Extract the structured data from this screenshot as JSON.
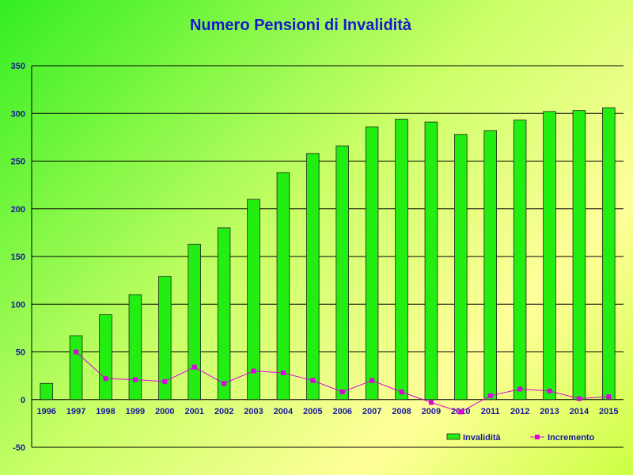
{
  "chart_data": {
    "type": "bar",
    "title": "Numero Pensioni di Invalidità",
    "categories": [
      "1996",
      "1997",
      "1998",
      "1999",
      "2000",
      "2001",
      "2002",
      "2003",
      "2004",
      "2005",
      "2006",
      "2007",
      "2008",
      "2009",
      "2010",
      "2011",
      "2012",
      "2013",
      "2014",
      "2015"
    ],
    "series": [
      {
        "name": "Invalidità",
        "type": "bar",
        "color": "#22ee11",
        "values": [
          17,
          67,
          89,
          110,
          129,
          163,
          180,
          210,
          238,
          258,
          266,
          286,
          294,
          291,
          278,
          282,
          293,
          302,
          303,
          306
        ]
      },
      {
        "name": "Incremento",
        "type": "line",
        "color": "#dd00dd",
        "values": [
          null,
          50,
          22,
          21,
          19,
          34,
          17,
          30,
          28,
          20,
          8,
          20,
          8,
          -3,
          -13,
          4,
          11,
          9,
          1,
          3
        ]
      }
    ],
    "ylim": [
      -50,
      350
    ],
    "yticks": [
      -50,
      0,
      50,
      100,
      150,
      200,
      250,
      300,
      350
    ],
    "grid": true,
    "legend_position": "bottom-right",
    "title_color": "#1a1acc",
    "label_color": "#1a1a99"
  }
}
